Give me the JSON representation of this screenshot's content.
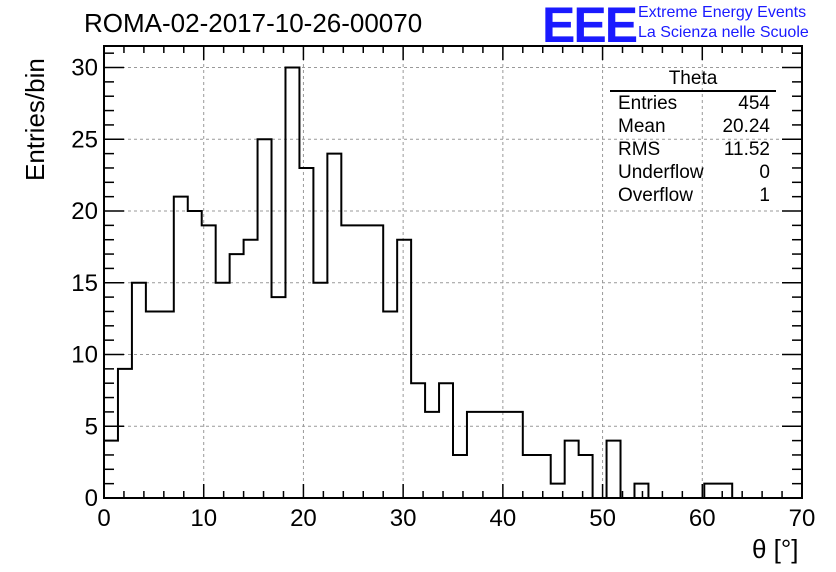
{
  "title": "ROMA-02-2017-10-26-00070",
  "logo": {
    "mark": "EEE",
    "line1": "Extreme Energy Events",
    "line2": "La Scienza nelle Scuole",
    "color": "#1a1aff"
  },
  "stats": {
    "name": "Theta",
    "rows": [
      {
        "label": "Entries",
        "value": "454"
      },
      {
        "label": "Mean",
        "value": "20.24"
      },
      {
        "label": "RMS",
        "value": "11.52"
      },
      {
        "label": "Underflow",
        "value": "0"
      },
      {
        "label": "Overflow",
        "value": "1"
      }
    ]
  },
  "chart_data": {
    "type": "histogram",
    "title": "ROMA-02-2017-10-26-00070",
    "xlabel": "θ [°]",
    "ylabel": "Entries/bin",
    "xlim": [
      0,
      70
    ],
    "ylim": [
      0,
      31.5
    ],
    "bin_width": 1.4,
    "x_ticks": [
      0,
      10,
      20,
      30,
      40,
      50,
      60,
      70
    ],
    "y_ticks": [
      0,
      5,
      10,
      15,
      20,
      25,
      30
    ],
    "grid": true,
    "line_color": "#000000",
    "values": [
      4,
      9,
      15,
      13,
      13,
      21,
      20,
      19,
      15,
      17,
      18,
      25,
      14,
      30,
      23,
      15,
      24,
      19,
      19,
      19,
      13,
      18,
      8,
      6,
      8,
      3,
      6,
      6,
      6,
      6,
      3,
      3,
      1,
      4,
      3,
      0,
      4,
      0,
      1,
      0,
      0,
      0,
      0,
      1,
      1,
      0,
      0,
      0,
      0,
      0
    ]
  }
}
